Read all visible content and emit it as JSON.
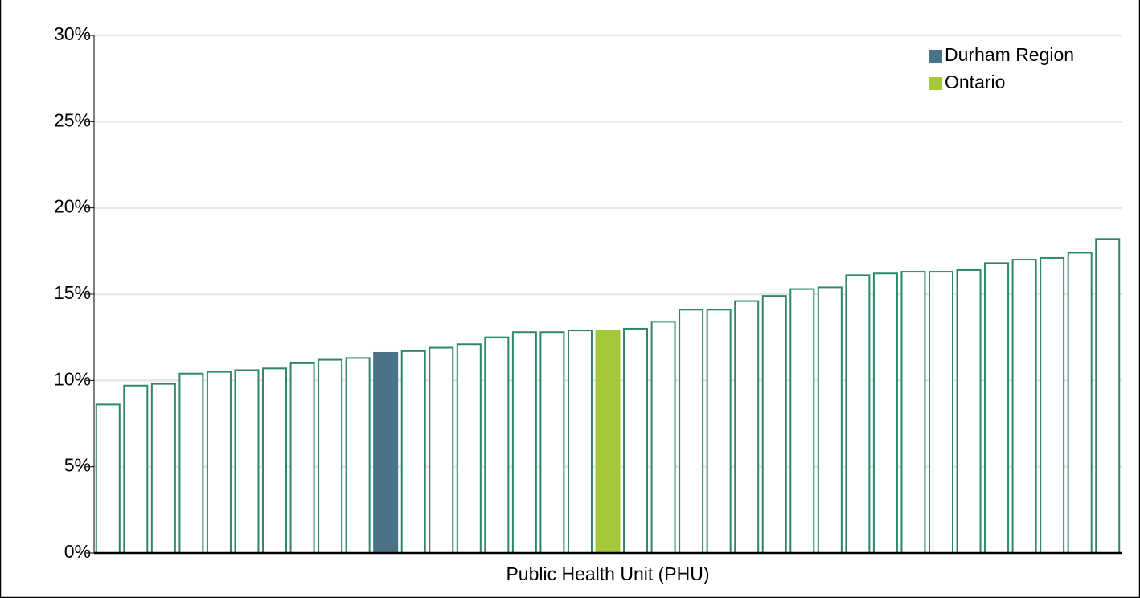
{
  "chart_data": {
    "type": "bar",
    "x_label": "Public Health Unit (PHU)",
    "categories": [
      null,
      null,
      null,
      null,
      null,
      null,
      null,
      null,
      null,
      null,
      null,
      null,
      null,
      null,
      null,
      null,
      null,
      null,
      null,
      null,
      null,
      null,
      null,
      null,
      null,
      null,
      null,
      null,
      null,
      null,
      null,
      null,
      null,
      null,
      null,
      null,
      null
    ],
    "values": [
      8.6,
      9.7,
      9.8,
      10.4,
      10.5,
      10.6,
      10.7,
      11.0,
      11.2,
      11.3,
      11.6,
      11.7,
      11.9,
      12.1,
      12.5,
      12.8,
      12.8,
      12.9,
      12.9,
      13.0,
      13.4,
      14.1,
      14.1,
      14.6,
      14.9,
      15.3,
      15.4,
      16.1,
      16.2,
      16.3,
      16.3,
      16.4,
      16.8,
      17.0,
      17.1,
      17.4,
      18.2
    ],
    "bar_fills": [
      "#ffffff",
      "#ffffff",
      "#ffffff",
      "#ffffff",
      "#ffffff",
      "#ffffff",
      "#ffffff",
      "#ffffff",
      "#ffffff",
      "#ffffff",
      "#4a7389",
      "#ffffff",
      "#ffffff",
      "#ffffff",
      "#ffffff",
      "#ffffff",
      "#ffffff",
      "#ffffff",
      "#a3c93a",
      "#ffffff",
      "#ffffff",
      "#ffffff",
      "#ffffff",
      "#ffffff",
      "#ffffff",
      "#ffffff",
      "#ffffff",
      "#ffffff",
      "#ffffff",
      "#ffffff",
      "#ffffff",
      "#ffffff",
      "#ffffff",
      "#ffffff",
      "#ffffff",
      "#ffffff",
      "#ffffff"
    ],
    "bar_edge_color": "#2e8866",
    "legend": [
      {
        "name": "Durham Region",
        "color": "#4a7389"
      },
      {
        "name": "Ontario",
        "color": "#a3c93a"
      }
    ],
    "legend_position": "upper right",
    "ylim": [
      0,
      30
    ],
    "yticks": [
      {
        "value": 0,
        "label": "0%"
      },
      {
        "value": 5,
        "label": "5%"
      },
      {
        "value": 10,
        "label": "10%"
      },
      {
        "value": 15,
        "label": "15%"
      },
      {
        "value": 20,
        "label": "20%"
      },
      {
        "value": 25,
        "label": "25%"
      },
      {
        "value": 30,
        "label": "30%"
      }
    ],
    "grid": true
  }
}
